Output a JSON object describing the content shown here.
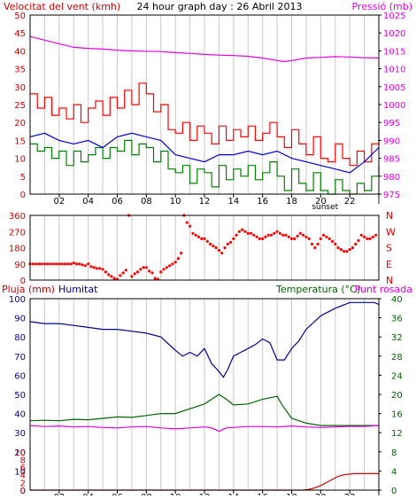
{
  "colors": {
    "wind": "#ff0000",
    "wind_avg": "#008000",
    "pressure": "#e000e0",
    "direction": "#ff0000",
    "humidity": "#00008b",
    "temperature": "#006400",
    "dewpoint": "#e000e0",
    "rain": "#cc0000",
    "grid": "#c8c8c8",
    "axis": "#000000"
  },
  "chart_data": [
    {
      "type": "line",
      "title": "24 hour graph day : 26 Abril 2013",
      "left_label": "Velocitat del vent (kmh)",
      "right_label": "Pressió (mb)",
      "y_left": {
        "min": 0,
        "max": 50,
        "ticks": [
          "0",
          "5",
          "10",
          "15",
          "20",
          "25",
          "30",
          "35",
          "40",
          "45",
          "50"
        ]
      },
      "y_right": {
        "min": 975,
        "max": 1025,
        "ticks": [
          "975",
          "980",
          "985",
          "990",
          "995",
          "1000",
          "1005",
          "1010",
          "1015",
          "1020",
          "1025"
        ]
      },
      "x_ticks": [
        "02",
        "04",
        "06",
        "08",
        "10",
        "12",
        "14",
        "16",
        "18",
        "20",
        "22",
        "l"
      ],
      "x_range": [
        0,
        24
      ],
      "sunset_label": "sunset",
      "sunset_hour": 20.3,
      "series": [
        {
          "key": "gust",
          "axis": "left",
          "x": [
            0,
            0.5,
            1,
            1.5,
            2,
            2.5,
            3,
            3.5,
            4,
            4.5,
            5,
            5.5,
            6,
            6.5,
            7,
            7.5,
            8,
            8.5,
            9,
            9.5,
            10,
            10.5,
            11,
            11.5,
            12,
            12.5,
            13,
            13.5,
            14,
            14.5,
            15,
            15.5,
            16,
            16.5,
            17,
            17.5,
            18,
            18.5,
            19,
            19.5,
            20,
            20.5,
            21,
            21.5,
            22,
            22.5,
            23,
            23.5,
            24
          ],
          "values": [
            28,
            24,
            27,
            22,
            24,
            21,
            25,
            20,
            24,
            26,
            22,
            27,
            24,
            29,
            25,
            31,
            28,
            23,
            25,
            18,
            17,
            20,
            15,
            19,
            17,
            14,
            19,
            15,
            18,
            16,
            19,
            15,
            17,
            20,
            16,
            13,
            18,
            14,
            11,
            16,
            10,
            9,
            14,
            10,
            8,
            12,
            9,
            14,
            18
          ]
        },
        {
          "key": "wind",
          "axis": "left",
          "x": [
            0,
            0.5,
            1,
            1.5,
            2,
            2.5,
            3,
            3.5,
            4,
            4.5,
            5,
            5.5,
            6,
            6.5,
            7,
            7.5,
            8,
            8.5,
            9,
            9.5,
            10,
            10.5,
            11,
            11.5,
            12,
            12.5,
            13,
            13.5,
            14,
            14.5,
            15,
            15.5,
            16,
            16.5,
            17,
            17.5,
            18,
            18.5,
            19,
            19.5,
            20,
            20.5,
            21,
            21.5,
            22,
            22.5,
            23,
            23.5,
            24
          ],
          "values": [
            14,
            12,
            13,
            10,
            12,
            8,
            12,
            9,
            11,
            13,
            10,
            13,
            12,
            15,
            11,
            14,
            13,
            9,
            12,
            7,
            6,
            8,
            3,
            7,
            6,
            2,
            8,
            4,
            7,
            5,
            8,
            4,
            6,
            9,
            5,
            1,
            7,
            3,
            1,
            6,
            1,
            0,
            4,
            1,
            0,
            3,
            1,
            5,
            8
          ]
        },
        {
          "key": "avg",
          "axis": "left",
          "x": [
            0,
            1,
            2,
            3,
            4,
            5,
            6,
            7,
            8,
            9,
            10,
            11,
            12,
            13,
            14,
            15,
            16,
            17,
            18,
            19,
            20,
            21,
            22,
            23,
            24
          ],
          "values": [
            16,
            17,
            15,
            14,
            15,
            13,
            16,
            17,
            16,
            15,
            11,
            10,
            9,
            11,
            11,
            12,
            11,
            12,
            10,
            9,
            8,
            7,
            6,
            9,
            13
          ]
        },
        {
          "key": "pressure",
          "axis": "right",
          "x": [
            0,
            1,
            2,
            3,
            4,
            5,
            6,
            7,
            8,
            9,
            10,
            11,
            12,
            13,
            14,
            15,
            16,
            17,
            17.5,
            18,
            19,
            20,
            21,
            22,
            23,
            24
          ],
          "values": [
            1019,
            1018,
            1017,
            1016,
            1015.7,
            1015.5,
            1015.2,
            1015,
            1014.9,
            1014.8,
            1014.5,
            1014.3,
            1014,
            1013.8,
            1013.7,
            1013.5,
            1013,
            1012.3,
            1012,
            1012.3,
            1013,
            1013.2,
            1013.4,
            1013.3,
            1013.1,
            1013
          ]
        }
      ]
    },
    {
      "type": "scatter",
      "title": "",
      "y_left": {
        "min": 0,
        "max": 360,
        "ticks": [
          "0",
          "90",
          "180",
          "270",
          "360"
        ]
      },
      "y_right_labels": [
        "N",
        "W",
        "S",
        "E",
        "N"
      ],
      "x_range": [
        0,
        24
      ],
      "series": [
        {
          "key": "direction",
          "x": [
            0,
            0.2,
            0.4,
            0.6,
            0.8,
            1,
            1.2,
            1.4,
            1.6,
            1.8,
            2,
            2.2,
            2.4,
            2.6,
            2.8,
            3,
            3.2,
            3.4,
            3.6,
            3.8,
            4,
            4.2,
            4.4,
            4.6,
            4.8,
            5,
            5.2,
            5.4,
            5.6,
            5.8,
            6,
            6.2,
            6.4,
            6.6,
            6.8,
            7,
            7.2,
            7.4,
            7.6,
            7.8,
            8,
            8.2,
            8.4,
            8.6,
            8.8,
            9,
            9.2,
            9.4,
            9.6,
            9.8,
            10,
            10.2,
            10.4,
            10.6,
            10.8,
            11,
            11.2,
            11.4,
            11.6,
            11.8,
            12,
            12.2,
            12.4,
            12.6,
            12.8,
            13,
            13.2,
            13.4,
            13.6,
            13.8,
            14,
            14.2,
            14.4,
            14.6,
            14.8,
            15,
            15.2,
            15.4,
            15.6,
            15.8,
            16,
            16.2,
            16.4,
            16.6,
            16.8,
            17,
            17.2,
            17.4,
            17.6,
            17.8,
            18,
            18.2,
            18.4,
            18.6,
            18.8,
            19,
            19.2,
            19.4,
            19.6,
            19.8,
            20,
            20.2,
            20.4,
            20.6,
            20.8,
            21,
            21.2,
            21.4,
            21.6,
            21.8,
            22,
            22.2,
            22.4,
            22.6,
            22.8,
            23,
            23.2,
            23.4,
            23.6,
            23.8
          ],
          "values": [
            90,
            90,
            90,
            90,
            90,
            90,
            90,
            90,
            90,
            90,
            90,
            90,
            90,
            90,
            90,
            95,
            90,
            90,
            85,
            80,
            90,
            75,
            70,
            65,
            65,
            60,
            45,
            30,
            20,
            10,
            5,
            25,
            40,
            55,
            360,
            20,
            35,
            45,
            60,
            70,
            70,
            50,
            40,
            10,
            5,
            45,
            60,
            70,
            80,
            90,
            100,
            120,
            150,
            360,
            320,
            300,
            260,
            250,
            240,
            230,
            230,
            215,
            200,
            190,
            180,
            165,
            150,
            180,
            200,
            210,
            230,
            250,
            270,
            280,
            270,
            260,
            260,
            250,
            240,
            230,
            230,
            240,
            250,
            250,
            260,
            270,
            260,
            250,
            250,
            240,
            230,
            230,
            245,
            260,
            250,
            240,
            230,
            200,
            180,
            200,
            230,
            250,
            240,
            230,
            215,
            200,
            180,
            170,
            160,
            160,
            170,
            180,
            200,
            220,
            250,
            240,
            230,
            230,
            240,
            250
          ]
        }
      ]
    },
    {
      "type": "line",
      "title": "",
      "left_labels": [
        "Pluja (mm)",
        "Humitat"
      ],
      "right_labels": [
        "Temperatura (°C)",
        "Punt rosada"
      ],
      "y_rain": {
        "min": 0,
        "max": 10,
        "ticks": [
          "0",
          "2",
          "4",
          "6",
          "8",
          "10"
        ]
      },
      "y_hum": {
        "min": 0,
        "max": 100,
        "ticks": [
          "0",
          "10",
          "20",
          "30",
          "40",
          "50",
          "60",
          "70",
          "80",
          "90",
          "100"
        ]
      },
      "y_left_ticks": [
        "0",
        "2",
        "4",
        "6",
        "8",
        "10",
        "12",
        "14",
        "16",
        "18",
        "20",
        "22",
        "24",
        "26",
        "28",
        "30",
        "32",
        "34",
        "36",
        "38",
        "40"
      ],
      "y_hum_ticks_drawn": [
        "0",
        "3",
        "6",
        "9",
        "12",
        "15",
        "18",
        "21",
        "24",
        "27",
        "30",
        "33",
        "36",
        "39",
        "42",
        "45",
        "48",
        "51",
        "54",
        "57",
        "60",
        "63",
        "66",
        "69",
        "72",
        "75",
        "78",
        "81",
        "84",
        "87",
        "90",
        "93",
        "96",
        "100"
      ],
      "y_left_display": [
        "0",
        "4",
        "8",
        "12",
        "16",
        "20",
        "24",
        "28",
        "32",
        "36",
        "40",
        "45",
        "50",
        "55",
        "60",
        "65",
        "70",
        "75",
        "80",
        "87",
        "94",
        "100"
      ],
      "y_right": {
        "min": 0,
        "max": 40,
        "ticks": [
          "0",
          "4",
          "8",
          "12",
          "16",
          "20",
          "24",
          "28",
          "32",
          "36",
          "40"
        ]
      },
      "x_ticks": [
        "02",
        "04",
        "06",
        "08",
        "10",
        "12",
        "14",
        "16",
        "18",
        "20",
        "22",
        "l"
      ],
      "x_range": [
        0,
        24
      ],
      "sunset_label": "sunset",
      "sunset_hour": 20.3,
      "series": [
        {
          "key": "humidity",
          "axis": "hum",
          "x": [
            0,
            1,
            2,
            3,
            4,
            5,
            6,
            7,
            8,
            9,
            10,
            10.5,
            11,
            11.5,
            12,
            12.5,
            13,
            13.3,
            13.6,
            14,
            14.5,
            15,
            15.5,
            16,
            16.5,
            17,
            17.5,
            18,
            18.5,
            19,
            20,
            21,
            22,
            23,
            23.7,
            24
          ],
          "values": [
            88,
            87,
            87,
            86,
            85,
            84,
            84,
            83,
            82,
            80,
            73,
            70,
            72,
            70,
            74,
            66,
            62,
            59,
            63,
            70,
            72,
            74,
            76,
            79,
            77,
            68,
            68,
            74,
            78,
            84,
            91,
            95,
            98,
            98,
            98,
            97
          ]
        },
        {
          "key": "temperature",
          "axis": "right",
          "x": [
            0,
            1,
            2,
            3,
            4,
            5,
            6,
            7,
            8,
            9,
            10,
            11,
            12,
            12.5,
            13,
            13.5,
            14,
            15,
            16,
            17,
            17.3,
            18,
            19,
            20,
            21,
            22,
            23,
            24
          ],
          "values": [
            14.5,
            14.6,
            14.5,
            14.8,
            14.7,
            15,
            15.3,
            15.2,
            15.6,
            16,
            16,
            17,
            18,
            19,
            20,
            19,
            17.8,
            18,
            19,
            19.6,
            18,
            15,
            14,
            13.5,
            13.5,
            13.5,
            13.5,
            13.5
          ]
        },
        {
          "key": "dewpoint",
          "axis": "right",
          "x": [
            0,
            1,
            2,
            3,
            4,
            5,
            6,
            7,
            8,
            9,
            10,
            11,
            12,
            12.5,
            13,
            13.5,
            14,
            15,
            16,
            17,
            18,
            19,
            20,
            21,
            22,
            23,
            24
          ],
          "values": [
            13.5,
            13.3,
            13.4,
            13.2,
            13.3,
            13.1,
            13,
            13.2,
            13.3,
            13,
            12.8,
            13,
            13.2,
            13,
            12.3,
            13,
            13.1,
            13.3,
            13.3,
            13.2,
            13.4,
            13.2,
            13.1,
            13.2,
            13.3,
            13.3,
            13.5
          ]
        },
        {
          "key": "rain",
          "axis": "rain",
          "x": [
            0,
            18,
            18.8,
            19.2,
            19.6,
            20,
            20.4,
            20.8,
            21.2,
            21.6,
            22,
            22.4,
            23,
            23.8,
            24
          ],
          "values": [
            0,
            0,
            0,
            0.2,
            0.6,
            1.2,
            2,
            2.8,
            3.6,
            4,
            4.2,
            4.3,
            4.3,
            4.3,
            4.3
          ]
        }
      ]
    }
  ]
}
